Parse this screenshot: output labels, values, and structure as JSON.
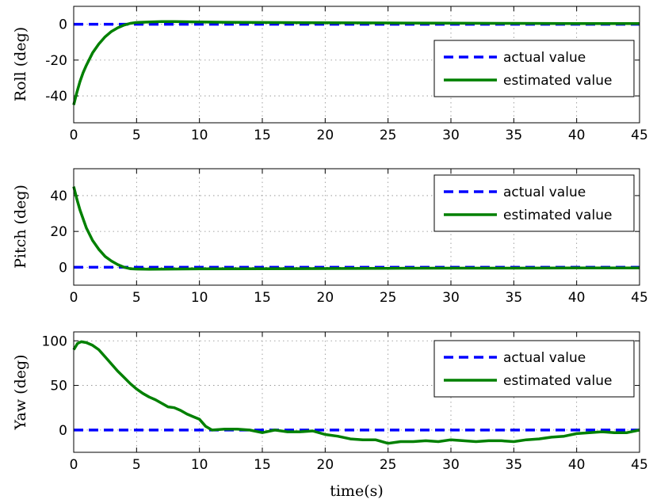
{
  "chart_data": [
    {
      "type": "line",
      "ylabel": "Roll (deg)",
      "xlabel": "",
      "xlim": [
        0,
        45
      ],
      "ylim": [
        -55,
        10
      ],
      "xticks": [
        0,
        5,
        10,
        15,
        20,
        25,
        30,
        35,
        40,
        45
      ],
      "yticks": [
        -40,
        -20,
        0
      ],
      "grid": true,
      "legend_position": "right",
      "series": [
        {
          "name": "actual value",
          "color": "#0000ff",
          "style": "dashed",
          "x": [
            0,
            45
          ],
          "y": [
            0,
            0
          ]
        },
        {
          "name": "estimated value",
          "color": "#008000",
          "style": "solid",
          "x": [
            0,
            0.25,
            0.5,
            0.75,
            1,
            1.5,
            2,
            2.5,
            3,
            3.5,
            4,
            4.5,
            5,
            6,
            7,
            8,
            10,
            12,
            15,
            20,
            25,
            30,
            35,
            40,
            45
          ],
          "y": [
            -45,
            -38,
            -32,
            -27,
            -23,
            -16,
            -11,
            -7,
            -4,
            -2,
            -0.5,
            0.5,
            1,
            1.3,
            1.5,
            1.5,
            1.3,
            1.1,
            1.0,
            0.8,
            0.7,
            0.6,
            0.5,
            0.4,
            0.4
          ]
        }
      ]
    },
    {
      "type": "line",
      "ylabel": "Pitch (deg)",
      "xlabel": "",
      "xlim": [
        0,
        45
      ],
      "ylim": [
        -10,
        55
      ],
      "xticks": [
        0,
        5,
        10,
        15,
        20,
        25,
        30,
        35,
        40,
        45
      ],
      "yticks": [
        0,
        20,
        40
      ],
      "grid": true,
      "legend_position": "top-right",
      "series": [
        {
          "name": "actual value",
          "color": "#0000ff",
          "style": "dashed",
          "x": [
            0,
            45
          ],
          "y": [
            0,
            0
          ]
        },
        {
          "name": "estimated value",
          "color": "#008000",
          "style": "solid",
          "x": [
            0,
            0.25,
            0.5,
            0.75,
            1,
            1.5,
            2,
            2.5,
            3,
            3.5,
            4,
            4.5,
            5,
            6,
            8,
            10,
            15,
            20,
            25,
            30,
            35,
            40,
            45
          ],
          "y": [
            45,
            38,
            32,
            27,
            22,
            15,
            10,
            6,
            3.5,
            1.5,
            0,
            -0.8,
            -1,
            -1.1,
            -1.0,
            -0.9,
            -0.8,
            -0.7,
            -0.6,
            -0.5,
            -0.5,
            -0.4,
            -0.4
          ]
        }
      ]
    },
    {
      "type": "line",
      "ylabel": "Yaw (deg)",
      "xlabel": "time(s)",
      "xlim": [
        0,
        45
      ],
      "ylim": [
        -25,
        110
      ],
      "xticks": [
        0,
        5,
        10,
        15,
        20,
        25,
        30,
        35,
        40,
        45
      ],
      "yticks": [
        0,
        50,
        100
      ],
      "grid": true,
      "legend_position": "top-right",
      "series": [
        {
          "name": "actual value",
          "color": "#0000ff",
          "style": "dashed",
          "x": [
            0,
            45
          ],
          "y": [
            0,
            0
          ]
        },
        {
          "name": "estimated value",
          "color": "#008000",
          "style": "solid",
          "x": [
            0,
            0.3,
            0.6,
            1,
            1.5,
            2,
            2.5,
            3,
            3.5,
            4,
            4.5,
            5,
            5.5,
            6,
            6.5,
            7,
            7.5,
            8,
            8.5,
            9,
            9.5,
            10,
            10.5,
            11,
            12,
            13,
            14,
            15,
            16,
            17,
            18,
            19,
            20,
            21,
            22,
            23,
            24,
            25,
            26,
            27,
            28,
            29,
            30,
            31,
            32,
            33,
            34,
            35,
            36,
            37,
            38,
            39,
            40,
            41,
            42,
            43,
            44,
            45
          ],
          "y": [
            90,
            97,
            99,
            98,
            95,
            90,
            82,
            74,
            66,
            59,
            52,
            46,
            41,
            37,
            34,
            30,
            26,
            25,
            22,
            18,
            15,
            12,
            4,
            0,
            1,
            1,
            0,
            -3,
            0,
            -2,
            -2,
            -1,
            -5,
            -7,
            -10,
            -11,
            -11,
            -15,
            -13,
            -13,
            -12,
            -13,
            -11,
            -12,
            -13,
            -12,
            -12,
            -13,
            -11,
            -10,
            -8,
            -7,
            -4,
            -3,
            -2,
            -3,
            -3,
            0
          ]
        }
      ]
    }
  ]
}
